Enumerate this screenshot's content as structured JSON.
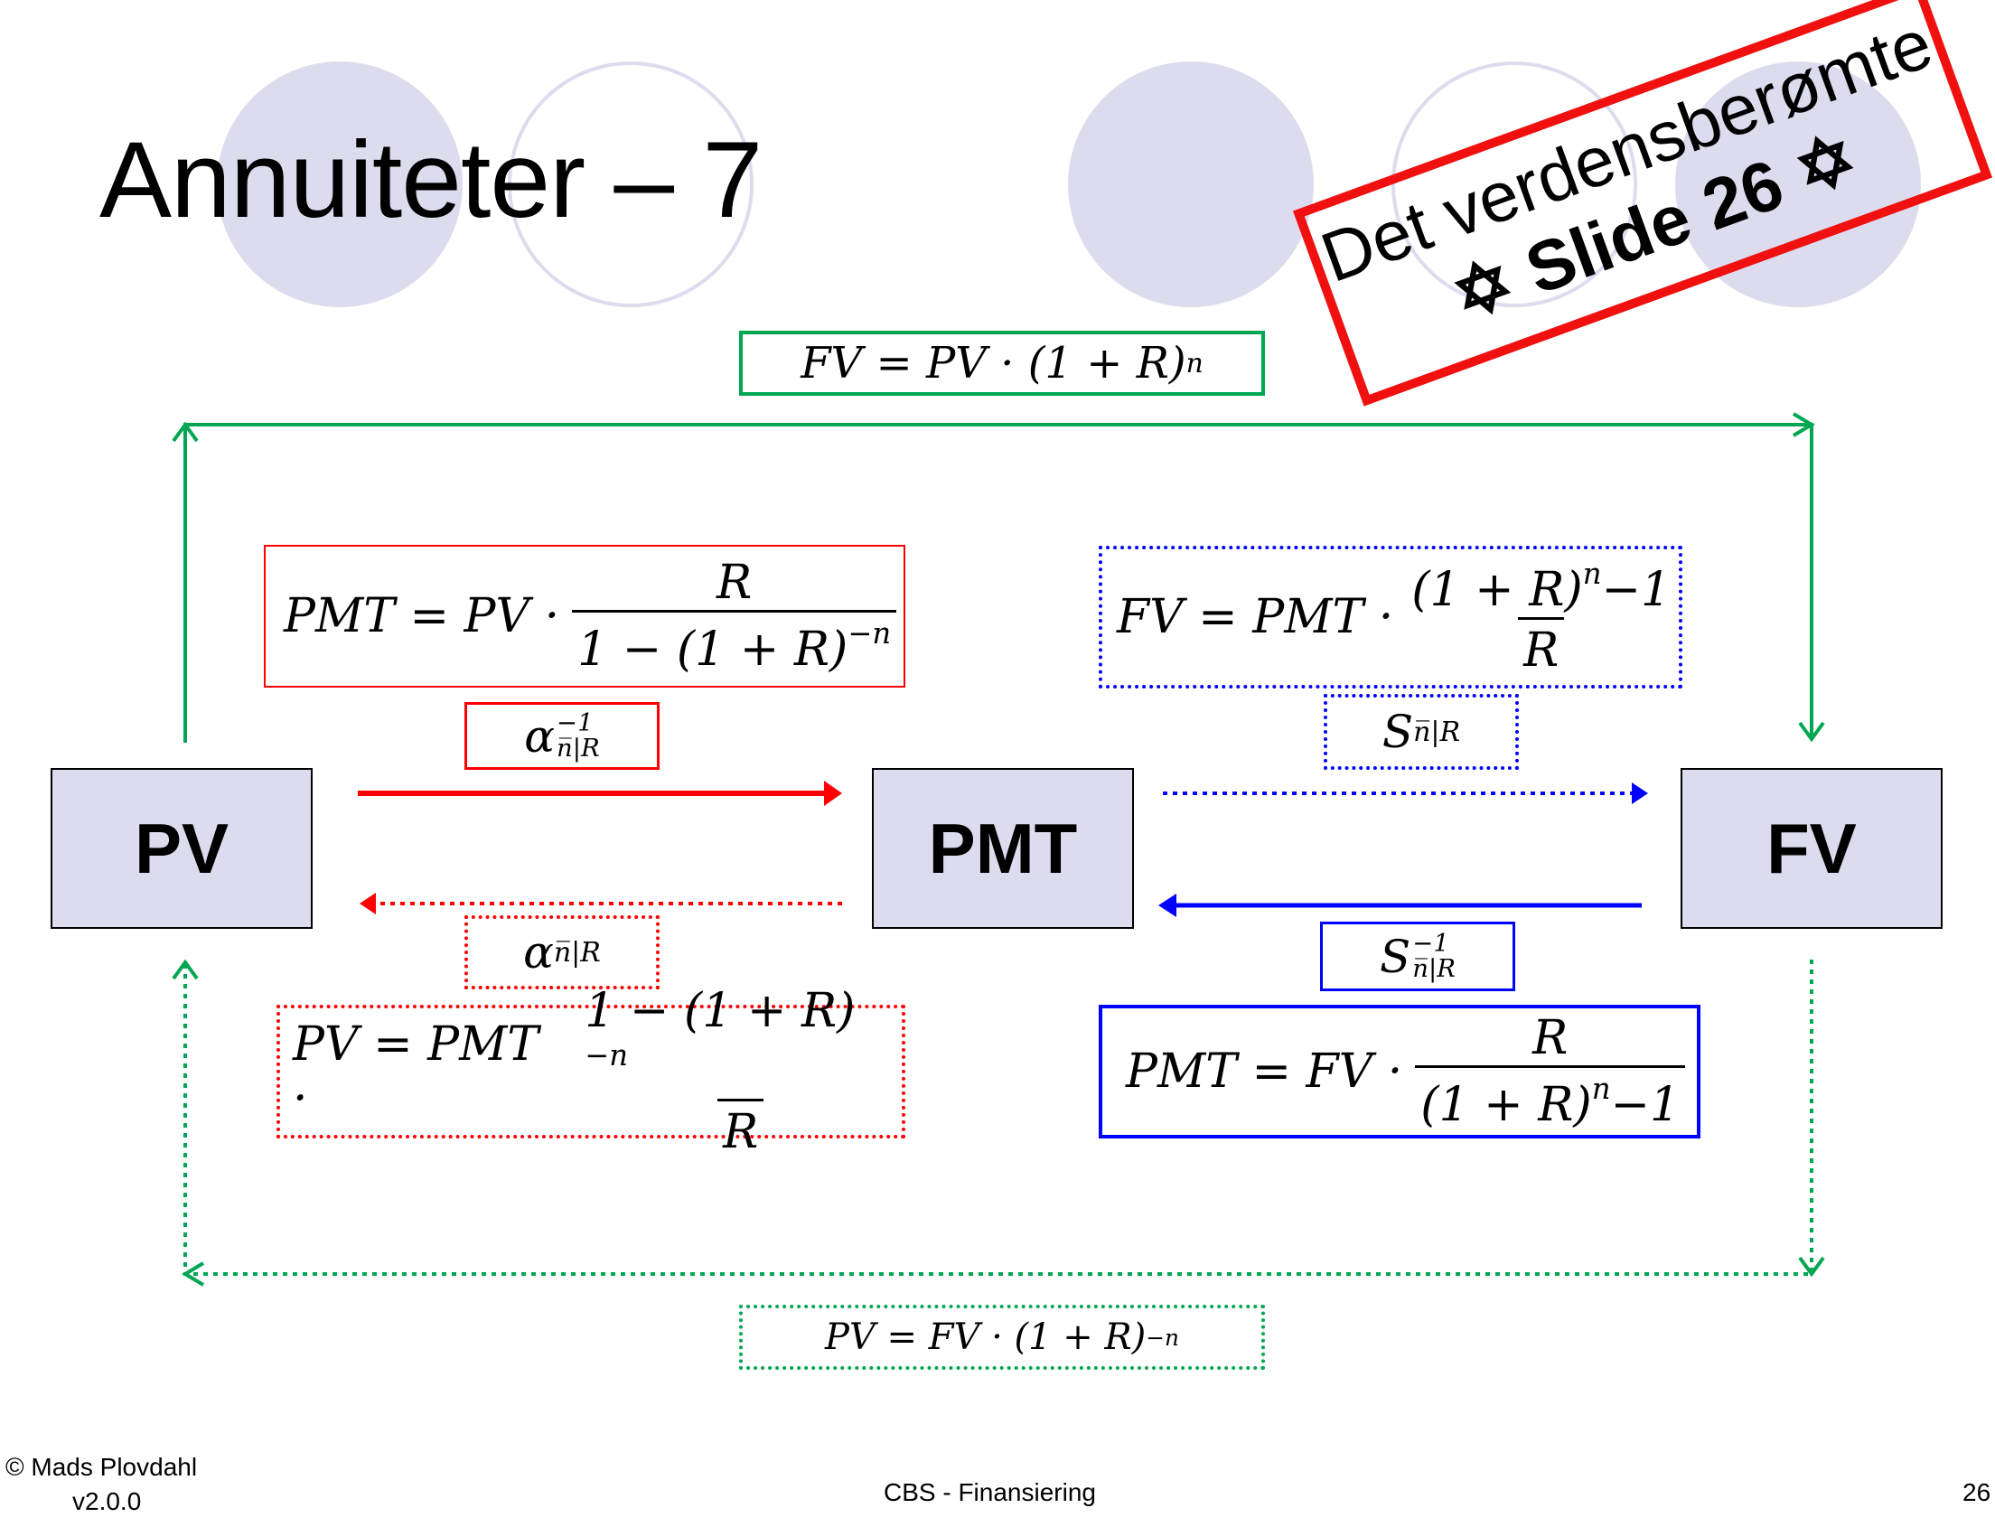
{
  "slide": {
    "title": "Annuiteter – 7",
    "stamp": {
      "line1": "Det verdensberømte",
      "line2": "✡ Slide 26 ✡"
    },
    "colors": {
      "green": "#00a651",
      "red": "#ff0000",
      "blue": "#0000ff",
      "node_fill": "#dcdcee",
      "stamp": "#f01010"
    }
  },
  "nodes": {
    "pv": "PV",
    "pmt": "PMT",
    "fv": "FV"
  },
  "formulas": {
    "fv_from_pv": {
      "lhs": "FV = PV · (1 + R)",
      "exp": "n"
    },
    "pv_from_fv": {
      "lhs": "PV = FV · (1 + R)",
      "exp": "−n"
    },
    "pmt_from_pv": {
      "lhs": "PMT = PV ·",
      "num": "R",
      "den": "1 − (1 + R)",
      "den_exp": "−n"
    },
    "pv_from_pmt": {
      "lhs": "PV = PMT ·",
      "num": "1 − (1 + R)",
      "num_exp": "−n",
      "den": "R"
    },
    "fv_from_pmt": {
      "lhs": "FV = PMT ·",
      "num": "(1 + R)",
      "num_exp": "n",
      "num_tail": "−1",
      "den": "R"
    },
    "pmt_from_fv": {
      "lhs": "PMT = FV ·",
      "num": "R",
      "den": "(1 + R)",
      "den_exp": "n",
      "den_tail": "−1"
    }
  },
  "symbols": {
    "alpha_inv": {
      "base": "α",
      "sup": "−1",
      "sub": "n̅|R"
    },
    "alpha": {
      "base": "α",
      "sub": "n̅|R"
    },
    "s": {
      "base": "S",
      "sub": "n̅|R"
    },
    "s_inv": {
      "base": "S",
      "sup": "−1",
      "sub": "n̅|R"
    }
  },
  "footer": {
    "author": "© Mads Plovdahl",
    "version": "v2.0.0",
    "course": "CBS - Finansiering",
    "page": "26"
  }
}
